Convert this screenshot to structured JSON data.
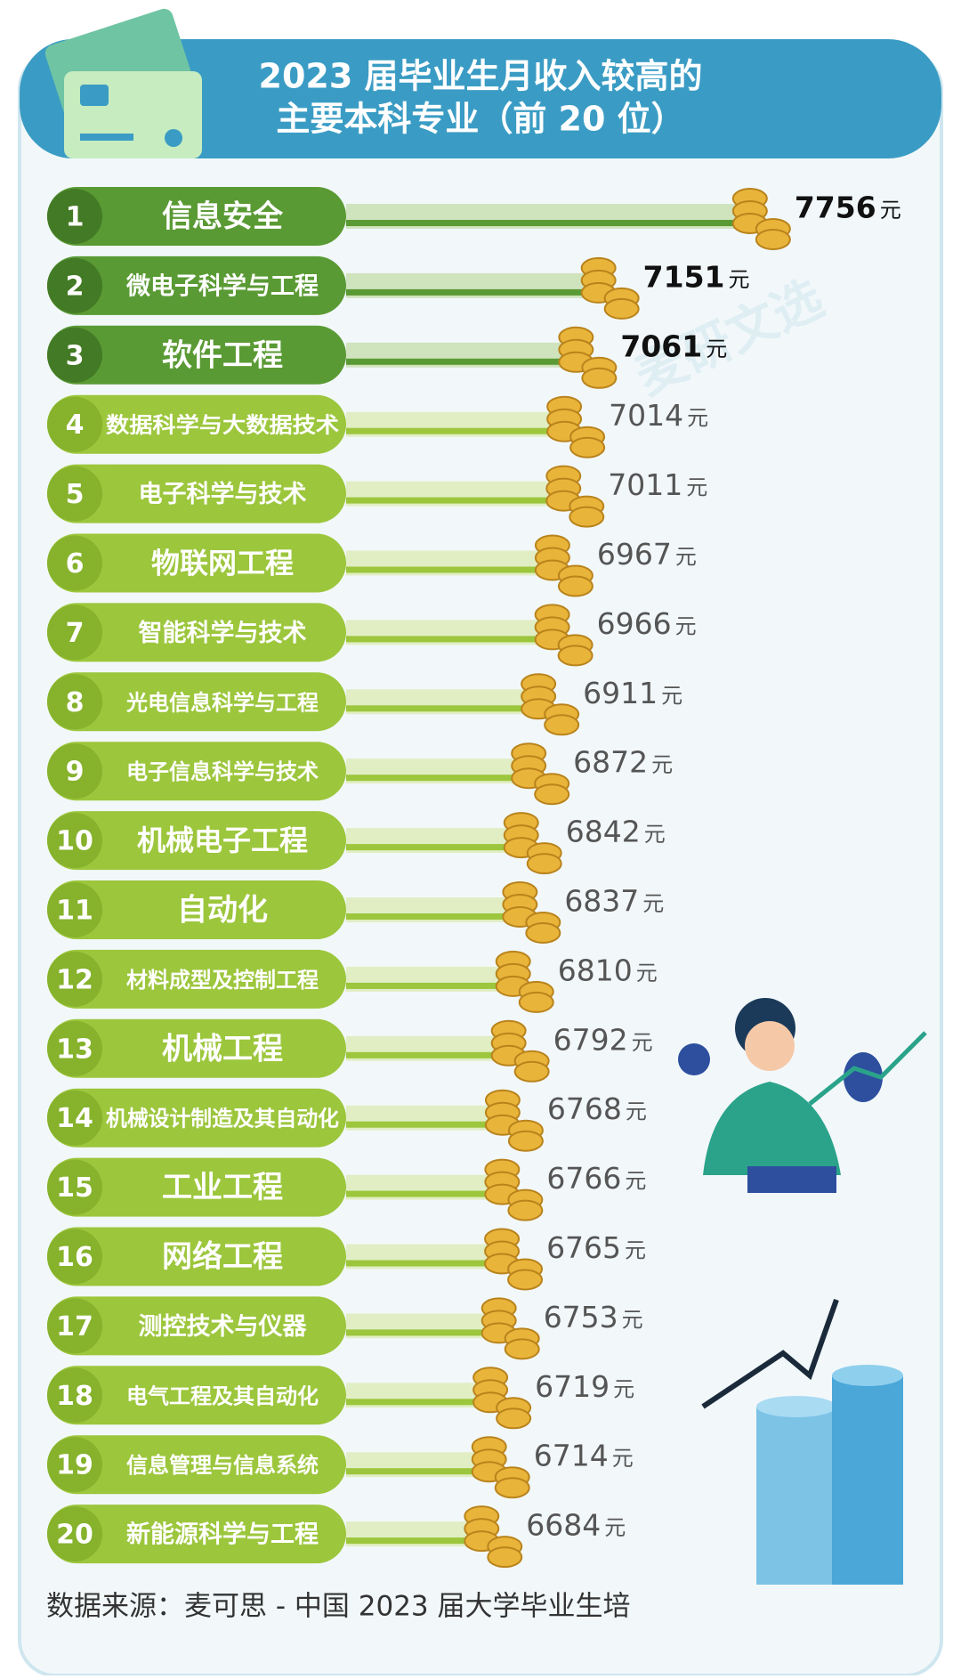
{
  "chart_data": {
    "type": "bar",
    "title": "2023 届毕业生月收入较高的",
    "subtitle": "主要本科专业（前 20 位）",
    "ranks": [
      1,
      2,
      3,
      4,
      5,
      6,
      7,
      8,
      9,
      10,
      11,
      12,
      13,
      14,
      15,
      16,
      17,
      18,
      19,
      20
    ],
    "categories": [
      "信息安全",
      "微电子科学与工程",
      "软件工程",
      "数据科学与大数据技术",
      "电子科学与技术",
      "物联网工程",
      "智能科学与技术",
      "光电信息科学与工程",
      "电子信息科学与技术",
      "机械电子工程",
      "自动化",
      "材料成型及控制工程",
      "机械工程",
      "机械设计制造及其自动化",
      "工业工程",
      "网络工程",
      "测控技术与仪器",
      "电气工程及其自动化",
      "信息管理与信息系统",
      "新能源科学与工程"
    ],
    "values": [
      7756,
      7151,
      7061,
      7014,
      7011,
      6967,
      6966,
      6911,
      6872,
      6842,
      6837,
      6810,
      6792,
      6768,
      6766,
      6765,
      6753,
      6719,
      6714,
      6684
    ],
    "unit": "元",
    "xlim": [
      6100,
      8400
    ],
    "highlight_colors": [
      "#5a9a34",
      "#5a9a34",
      "#5a9a34"
    ],
    "color": "#9cc63c",
    "source": "数据来源：麦可思 - 中国 2023 届大学毕业生培",
    "watermark": "麦研文选"
  }
}
